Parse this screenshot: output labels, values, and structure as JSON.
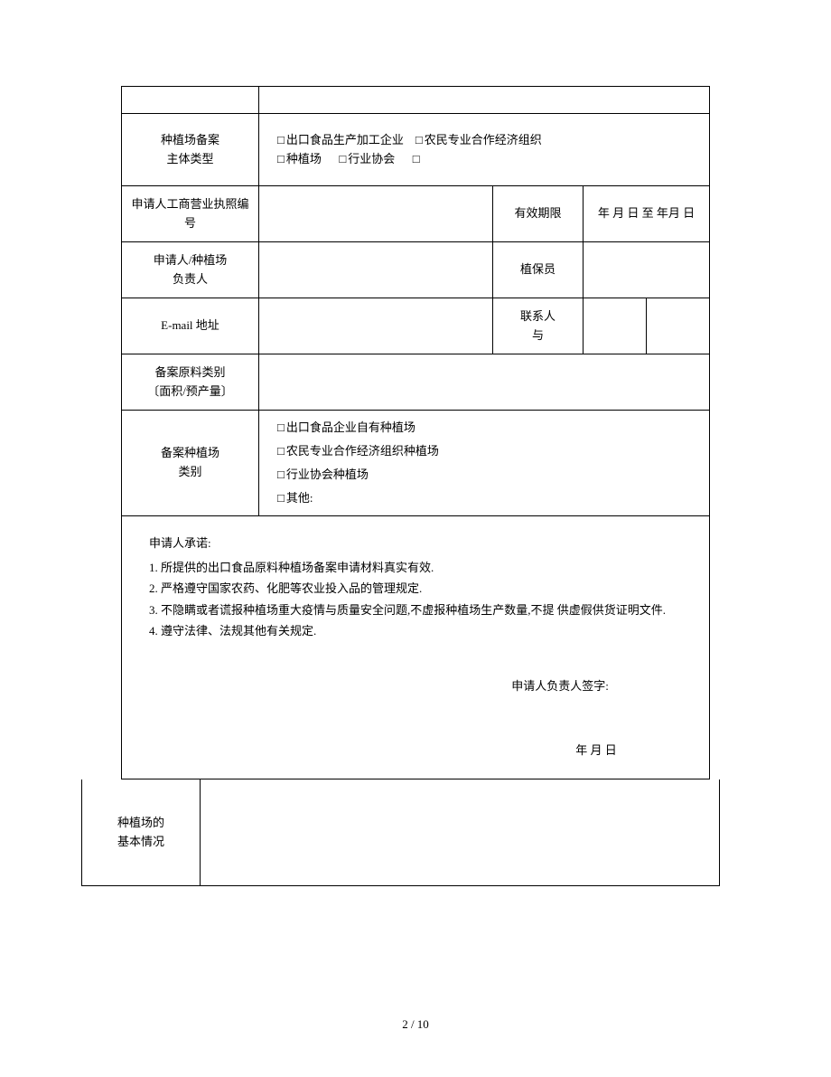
{
  "table1": {
    "row_type": {
      "label": "种植场备案\n主体类型",
      "opt1": "出口食品生产加工企业",
      "opt2": "农民专业合作经济组织",
      "opt3": "种植场",
      "opt4": "行业协会",
      "checkbox": "□"
    },
    "row_license": {
      "label": "申请人工商营业执照编号",
      "mid_label": "有效期限",
      "value": "年   月   日 至   年月   日"
    },
    "row_person": {
      "label": "申请人/种植场\n负责人",
      "mid_label": "植保员"
    },
    "row_email": {
      "label": "E-mail 地址",
      "mid_label": "联系人\n与"
    },
    "row_category": {
      "label": "备案原料类别\n〔面积/预产量〕"
    },
    "row_farm_type": {
      "label": "备案种植场\n类别",
      "opt1": "出口食品企业自有种植场",
      "opt2": "农民专业合作经济组织种植场",
      "opt3": "行业协会种植场",
      "opt4": "其他:",
      "checkbox": "□"
    },
    "commitment": {
      "title": "申请人承诺:",
      "item1": "1.  所提供的出口食品原料种植场备案申请材料真实有效.",
      "item2": "2.  严格遵守国家农药、化肥等农业投入品的管理规定.",
      "item3": "3.  不隐瞒或者谎报种植场重大疫情与质量安全问题,不虚报种植场生产数量,不提  供虚假供货证明文件.",
      "item4": "4.  遵守法律、法规其他有关规定.",
      "sign": "申请人负责人签字:",
      "date": "年  月   日"
    }
  },
  "table2": {
    "row_basic": {
      "label": "种植场的\n基本情况"
    }
  },
  "footer": "2 / 10"
}
